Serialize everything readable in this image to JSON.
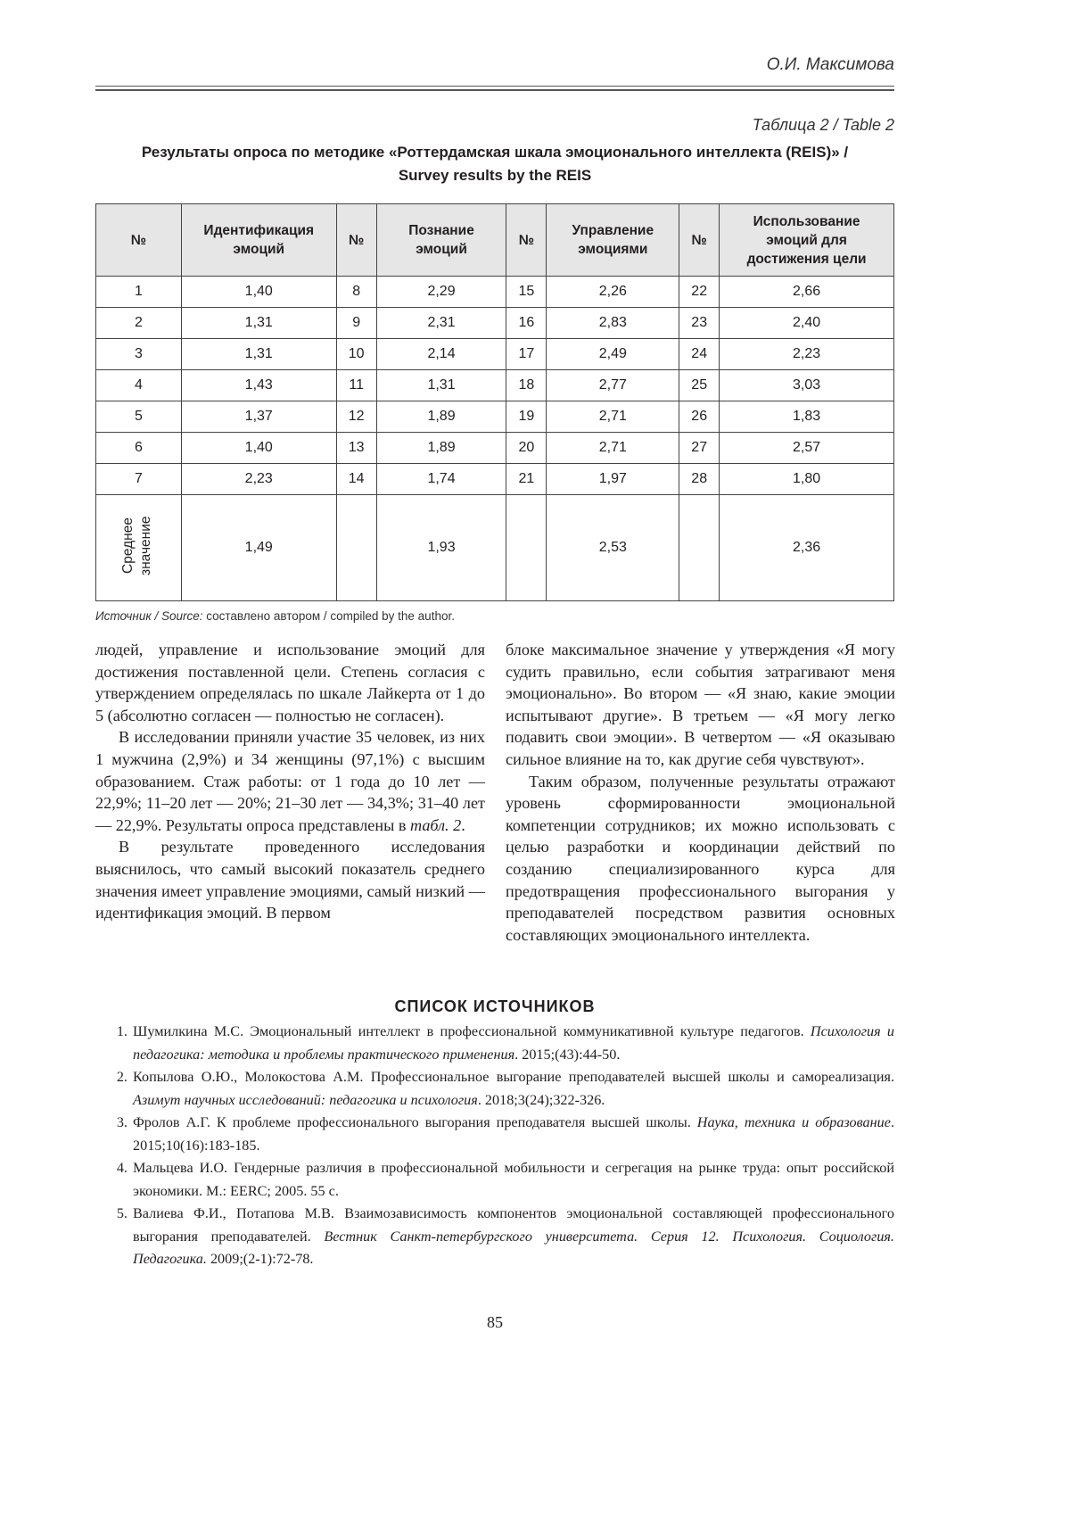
{
  "header": {
    "running_head": "О.И. Максимова"
  },
  "table": {
    "label": "Таблица 2 / Table 2",
    "title_line1": "Результаты опроса по методике «Роттердамская шкала эмоционального интеллекта (REIS)» /",
    "title_line2": "Survey results by the REIS",
    "columns": [
      "№",
      "Идентификация эмоций",
      "№",
      "Познание эмоций",
      "№",
      "Управление эмоциями",
      "№",
      "Использование эмоций для достижения цели"
    ],
    "rows": [
      [
        "1",
        "1,40",
        "8",
        "2,29",
        "15",
        "2,26",
        "22",
        "2,66"
      ],
      [
        "2",
        "1,31",
        "9",
        "2,31",
        "16",
        "2,83",
        "23",
        "2,40"
      ],
      [
        "3",
        "1,31",
        "10",
        "2,14",
        "17",
        "2,49",
        "24",
        "2,23"
      ],
      [
        "4",
        "1,43",
        "11",
        "1,31",
        "18",
        "2,77",
        "25",
        "3,03"
      ],
      [
        "5",
        "1,37",
        "12",
        "1,89",
        "19",
        "2,71",
        "26",
        "1,83"
      ],
      [
        "6",
        "1,40",
        "13",
        "1,89",
        "20",
        "2,71",
        "27",
        "2,57"
      ],
      [
        "7",
        "2,23",
        "14",
        "1,74",
        "21",
        "1,97",
        "28",
        "1,80"
      ]
    ],
    "mean_row": {
      "label": "Среднее значение",
      "values": [
        "1,49",
        "1,93",
        "2,53",
        "2,36"
      ]
    },
    "source_label": "Источник / Source:",
    "source_text": " составлено автором / compiled by the author."
  },
  "body": {
    "left": [
      "людей, управление и использование эмоций для достижения поставленной цели. Степень согласия с утверждением определялась по шкале Лайкерта от 1 до 5 (абсолютно согласен — полностью не согласен).",
      "В исследовании приняли участие 35 человек, из них 1 мужчина (2,9%) и 34 женщины (97,1%) с высшим образованием. Стаж работы: от 1 года до 10 лет — 22,9%; 11–20 лет — 20%; 21–30 лет — 34,3%; 31–40 лет — 22,9%. Результаты опроса представлены в ",
      "табл. 2",
      ".",
      "В результате проведенного исследования выяснилось, что самый высокий показатель среднего значения имеет управление эмоциями, самый низкий — идентификация эмоций. В первом"
    ],
    "right": [
      "блоке максимальное значение у утверждения «Я могу судить правильно, если события затрагивают меня эмоционально». Во втором — «Я знаю, какие эмоции испытывают другие». В третьем — «Я могу легко подавить свои эмоции». В четвертом — «Я оказываю сильное влияние на то, как другие себя чувствуют».",
      "Таким образом, полученные результаты отражают уровень сформированности эмоциональной компетенции сотрудников; их можно использовать с целью разработки и координации действий по созданию специализированного курса для предотвращения профессионального выгорания у преподавателей посредством развития основных составляющих эмоционального интеллекта."
    ]
  },
  "references": {
    "title": "СПИСОК ИСТОЧНИКОВ",
    "items": [
      {
        "plain": "Шумилкина М.С. Эмоциональный интеллект в профессиональной коммуникативной культуре педагогов. ",
        "italic": "Психология и педагогика: методика и проблемы практического применения",
        "tail": ". 2015;(43):44-50."
      },
      {
        "plain": "Копылова О.Ю., Молокостова А.М. Профессиональное выгорание преподавателей высшей школы и самореализация. ",
        "italic": "Азимут научных исследований: педагогика и психология",
        "tail": ". 2018;3(24);322-326."
      },
      {
        "plain": "Фролов А.Г. К проблеме профессионального выгорания преподавателя высшей школы. ",
        "italic": "Наука, техника и образование",
        "tail": ". 2015;10(16):183-185."
      },
      {
        "plain": "Мальцева И.О. Гендерные различия в профессиональной мобильности и сегрегация на рынке труда: опыт российской экономики. М.: EERC; 2005. 55 с.",
        "italic": "",
        "tail": ""
      },
      {
        "plain": "Валиева Ф.И., Потапова М.В. Взаимозависимость компонентов эмоциональной составляющей профессионального выгорания преподавателей. ",
        "italic": "Вестник Санкт-петербургского университета. Серия 12. Психология. Социология. Педагогика.",
        "tail": " 2009;(2-1):72-78."
      }
    ]
  },
  "footer": {
    "page_number": "85"
  }
}
